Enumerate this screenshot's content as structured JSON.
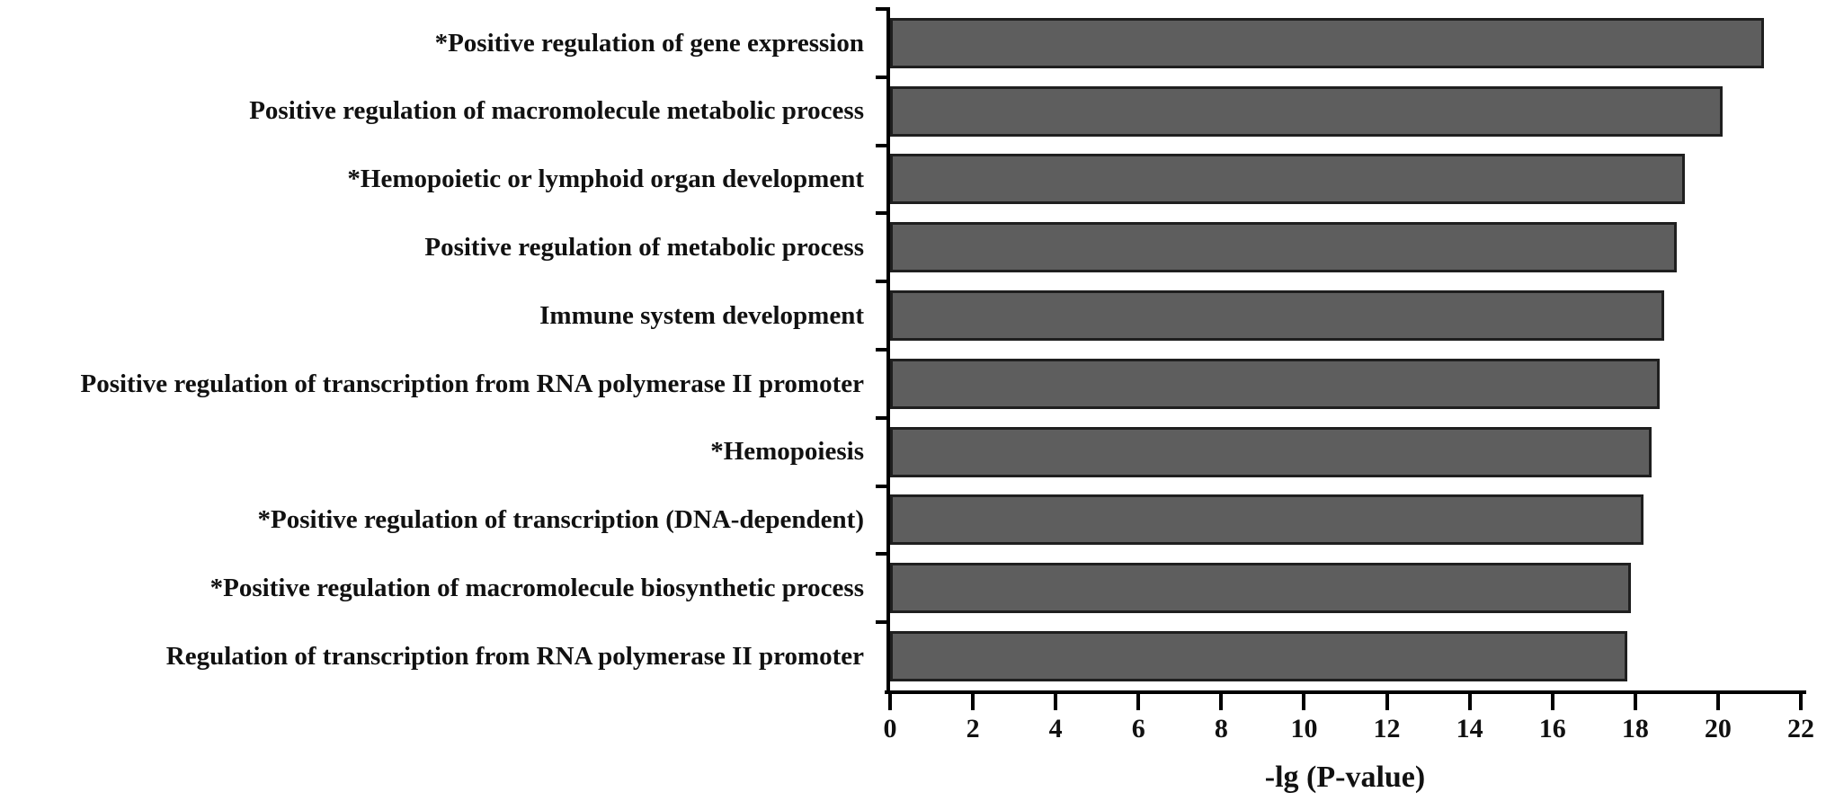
{
  "figure": {
    "description": "GO term enrichment horizontal bar chart",
    "bar_fill_color": "#5e5e5e",
    "bar_border_color": "#1f1f1f",
    "axis_color": "#000000",
    "text_color": "#111111"
  },
  "chart_data": {
    "type": "bar",
    "orientation": "horizontal",
    "title": "",
    "xlabel": "-lg (P-value)",
    "ylabel": "",
    "xlim": [
      0,
      22
    ],
    "xticks": [
      0,
      2,
      4,
      6,
      8,
      10,
      12,
      14,
      16,
      18,
      20,
      22
    ],
    "grid": false,
    "legend": "none",
    "categories": [
      "*Positive regulation of gene expression",
      "Positive regulation of macromolecule metabolic process",
      "*Hemopoietic or lymphoid organ development",
      "Positive regulation of metabolic process",
      "Immune system development",
      "Positive regulation of transcription from RNA polymerase II promoter",
      "*Hemopoiesis",
      "*Positive regulation of transcription (DNA-dependent)",
      "*Positive regulation of macromolecule biosynthetic process",
      "Regulation of transcription from RNA polymerase II promoter"
    ],
    "values": [
      21.1,
      20.1,
      19.2,
      19.0,
      18.7,
      18.6,
      18.4,
      18.2,
      17.9,
      17.8
    ]
  }
}
